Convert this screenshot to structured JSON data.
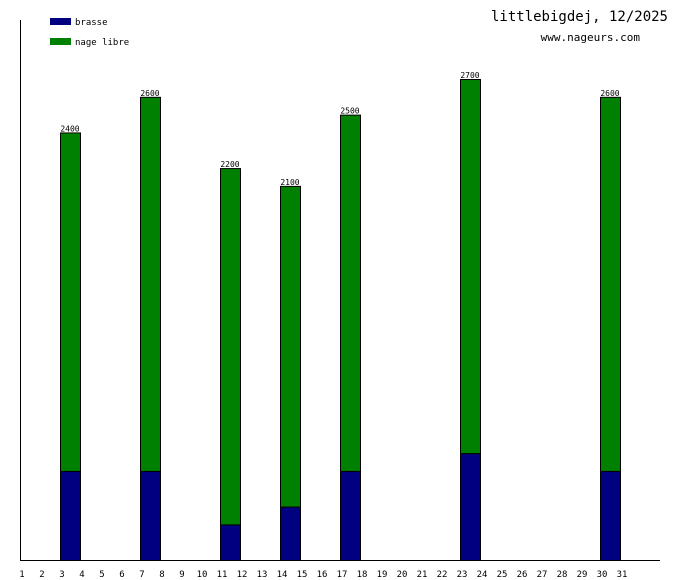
{
  "chart_data": {
    "type": "bar",
    "stacked": true,
    "title": "littlebigdej, 12/2025",
    "subtitle": "www.nageurs.com",
    "xlabel": "",
    "ylabel": "",
    "x": [
      1,
      2,
      3,
      4,
      5,
      6,
      7,
      8,
      9,
      10,
      11,
      12,
      13,
      14,
      15,
      16,
      17,
      18,
      19,
      20,
      21,
      22,
      23,
      24,
      25,
      26,
      27,
      28,
      29,
      30,
      31
    ],
    "bars": [
      {
        "day": 3,
        "brasse": 500,
        "nage_libre": 1900,
        "total": 2400,
        "label": "2400"
      },
      {
        "day": 7,
        "brasse": 500,
        "nage_libre": 2100,
        "total": 2600,
        "label": "2600"
      },
      {
        "day": 11,
        "brasse": 200,
        "nage_libre": 2000,
        "total": 2200,
        "label": "2200"
      },
      {
        "day": 14,
        "brasse": 300,
        "nage_libre": 1800,
        "total": 2100,
        "label": "2100"
      },
      {
        "day": 17,
        "brasse": 500,
        "nage_libre": 2000,
        "total": 2500,
        "label": "2500"
      },
      {
        "day": 23,
        "brasse": 600,
        "nage_libre": 2100,
        "total": 2700,
        "label": "2700"
      },
      {
        "day": 30,
        "brasse": 500,
        "nage_libre": 2100,
        "total": 2600,
        "label": "2600"
      }
    ],
    "series": [
      {
        "name": "brasse",
        "key": "brasse",
        "color": "#000080"
      },
      {
        "name": "nage libre",
        "key": "nage_libre",
        "color": "#008000"
      }
    ],
    "ylim": [
      0,
      2700
    ],
    "legend": "top-left",
    "grid": false
  }
}
